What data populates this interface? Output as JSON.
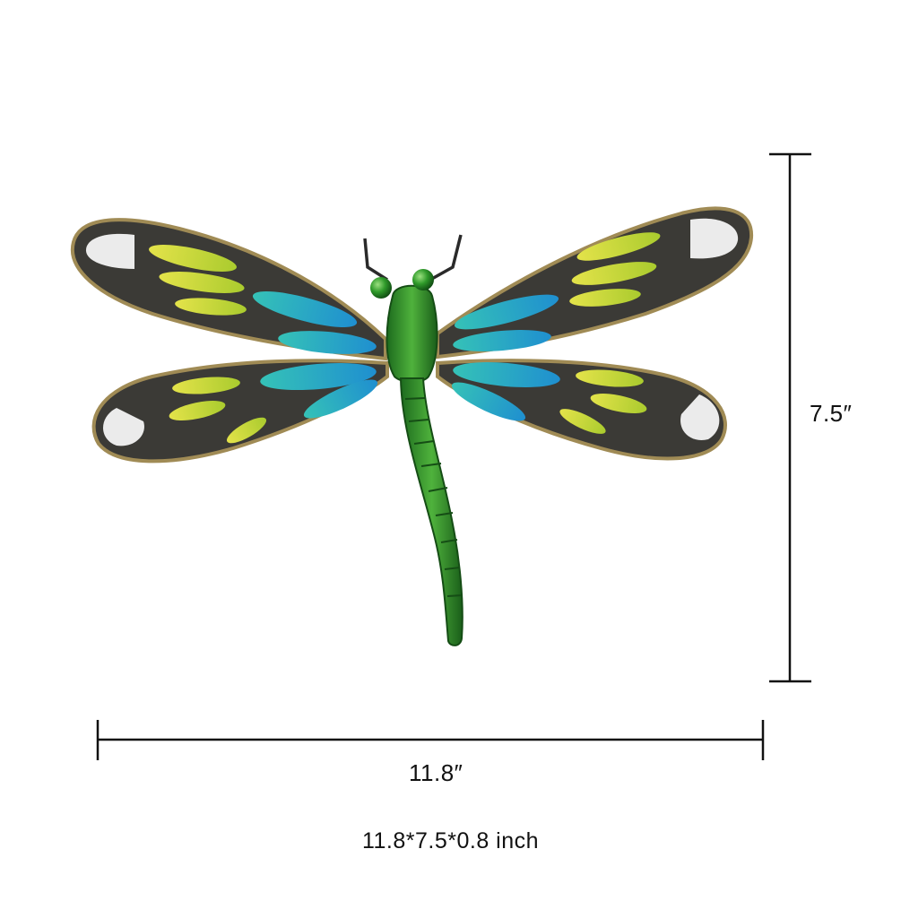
{
  "dimensions": {
    "height_label": "7.5″",
    "width_label": "11.8″",
    "size_caption": "11.8*7.5*0.8 inch"
  },
  "product": {
    "subject": "dragonfly-wall-art",
    "colors": {
      "frame": "#3b3a36",
      "gold_edge": "#a08b55",
      "yellow_glass": "#cfd63b",
      "blue_glass": "#2aa8cf",
      "teal_glass": "#2fb3a8",
      "body_green": "#2f8f2a",
      "dimension_line": "#111111"
    }
  }
}
